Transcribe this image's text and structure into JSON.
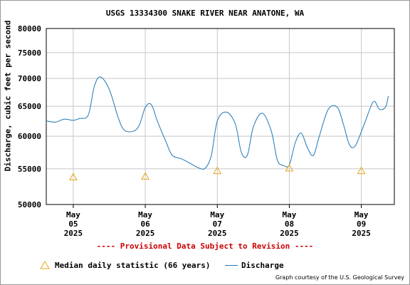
{
  "title": "USGS 13334300 SNAKE RIVER NEAR ANATONE, WA",
  "ylabel": "Discharge, cubic feet per second",
  "provisional": "---- Provisional Data Subject to Revision ----",
  "legend": {
    "median_label": "Median daily statistic (66 years)",
    "discharge_label": "Discharge"
  },
  "credit": "Graph courtesy of the U.S. Geological Survey",
  "colors": {
    "discharge": "#1f77b4",
    "median": "#e8a317",
    "grid": "#c8c8c8",
    "provisional": "#cc0000"
  },
  "chart_data": {
    "type": "line",
    "title": "USGS 13334300 SNAKE RIVER NEAR ANATONE, WA",
    "xlabel": "",
    "ylabel": "Discharge, cubic feet per second",
    "y_scale": "log",
    "ylim": [
      50000,
      80000
    ],
    "yticks": [
      50000,
      55000,
      60000,
      65000,
      70000,
      75000,
      80000
    ],
    "xlim": [
      "2025-05-04 15:00",
      "2025-05-09 11:00"
    ],
    "x_ticks": [
      {
        "date": "2025-05-05",
        "label": [
          "May",
          "05",
          "2025"
        ]
      },
      {
        "date": "2025-05-06",
        "label": [
          "May",
          "06",
          "2025"
        ]
      },
      {
        "date": "2025-05-07",
        "label": [
          "May",
          "07",
          "2025"
        ]
      },
      {
        "date": "2025-05-08",
        "label": [
          "May",
          "08",
          "2025"
        ]
      },
      {
        "date": "2025-05-09",
        "label": [
          "May",
          "09",
          "2025"
        ]
      }
    ],
    "grid": true,
    "legend_placement": "bottom",
    "series": [
      {
        "name": "Discharge",
        "x": [
          "2025-05-04 15:00",
          "2025-05-04 18:00",
          "2025-05-04 21:00",
          "2025-05-05 00:00",
          "2025-05-05 02:00",
          "2025-05-05 05:00",
          "2025-05-05 07:00",
          "2025-05-05 09:00",
          "2025-05-05 12:00",
          "2025-05-05 15:00",
          "2025-05-05 17:00",
          "2025-05-05 20:00",
          "2025-05-05 22:00",
          "2025-05-06 00:00",
          "2025-05-06 02:00",
          "2025-05-06 04:00",
          "2025-05-06 07:00",
          "2025-05-06 09:00",
          "2025-05-06 12:00",
          "2025-05-06 15:00",
          "2025-05-06 18:00",
          "2025-05-06 20:00",
          "2025-05-06 22:00",
          "2025-05-07 00:00",
          "2025-05-07 03:00",
          "2025-05-07 06:00",
          "2025-05-07 08:00",
          "2025-05-07 10:00",
          "2025-05-07 12:00",
          "2025-05-07 15:00",
          "2025-05-07 18:00",
          "2025-05-07 20:00",
          "2025-05-07 22:00",
          "2025-05-08 00:00",
          "2025-05-08 02:00",
          "2025-05-08 04:00",
          "2025-05-08 06:00",
          "2025-05-08 08:00",
          "2025-05-08 10:00",
          "2025-05-08 13:00",
          "2025-05-08 16:00",
          "2025-05-08 18:00",
          "2025-05-08 20:00",
          "2025-05-08 22:00",
          "2025-05-09 01:00",
          "2025-05-09 04:00",
          "2025-05-09 06:00",
          "2025-05-09 08:00",
          "2025-05-09 09:00"
        ],
        "y": [
          62500,
          62300,
          62800,
          62600,
          62900,
          63500,
          68500,
          70300,
          68000,
          63000,
          61000,
          60800,
          61800,
          64800,
          65300,
          62500,
          59000,
          57000,
          56500,
          55800,
          55100,
          55100,
          57000,
          62500,
          64000,
          62000,
          57500,
          57000,
          61500,
          63800,
          60800,
          56300,
          55500,
          55600,
          59000,
          60500,
          58200,
          57000,
          60000,
          64500,
          64800,
          62000,
          58700,
          58500,
          62000,
          65800,
          64500,
          64800,
          66800
        ]
      }
    ],
    "median": {
      "name": "Median daily statistic (66 years)",
      "x": [
        "2025-05-05 00:00",
        "2025-05-06 00:00",
        "2025-05-07 00:00",
        "2025-05-08 00:00",
        "2025-05-09 00:00"
      ],
      "y": [
        53800,
        53900,
        54700,
        55100,
        54700
      ]
    }
  }
}
